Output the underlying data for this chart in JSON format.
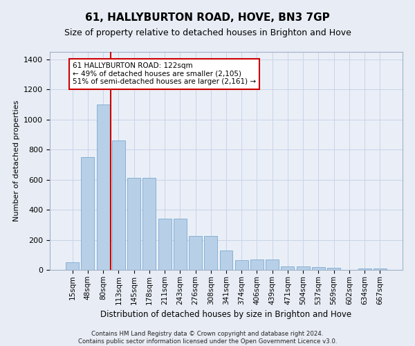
{
  "title": "61, HALLYBURTON ROAD, HOVE, BN3 7GP",
  "subtitle": "Size of property relative to detached houses in Brighton and Hove",
  "xlabel": "Distribution of detached houses by size in Brighton and Hove",
  "ylabel": "Number of detached properties",
  "footer_line1": "Contains HM Land Registry data © Crown copyright and database right 2024.",
  "footer_line2": "Contains public sector information licensed under the Open Government Licence v3.0.",
  "categories": [
    "15sqm",
    "48sqm",
    "80sqm",
    "113sqm",
    "145sqm",
    "178sqm",
    "211sqm",
    "243sqm",
    "276sqm",
    "308sqm",
    "341sqm",
    "374sqm",
    "406sqm",
    "439sqm",
    "471sqm",
    "504sqm",
    "537sqm",
    "569sqm",
    "602sqm",
    "634sqm",
    "667sqm"
  ],
  "values": [
    50,
    750,
    1100,
    860,
    610,
    610,
    340,
    340,
    225,
    225,
    130,
    65,
    70,
    70,
    25,
    25,
    20,
    12,
    0,
    8,
    8
  ],
  "bar_color": "#b8cfe8",
  "bar_edge_color": "#7aaad0",
  "annotation_text": "61 HALLYBURTON ROAD: 122sqm\n← 49% of detached houses are smaller (2,105)\n51% of semi-detached houses are larger (2,161) →",
  "annotation_box_color": "#ffffff",
  "annotation_box_edge": "#cc0000",
  "vline_color": "#cc0000",
  "ylim": [
    0,
    1450
  ],
  "yticks": [
    0,
    200,
    400,
    600,
    800,
    1000,
    1200,
    1400
  ],
  "grid_color": "#c8d4e8",
  "background_color": "#e8edf5",
  "plot_bg_color": "#eaeff7",
  "title_fontsize": 11,
  "subtitle_fontsize": 9
}
